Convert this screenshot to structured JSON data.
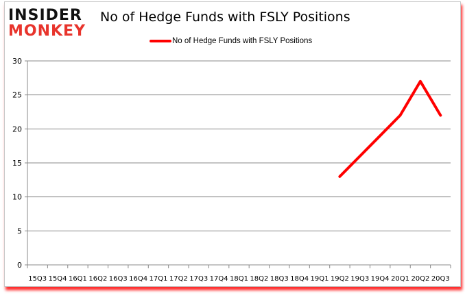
{
  "logo": {
    "line1": "INSIDER",
    "line2": "MONKEY"
  },
  "colors": {
    "series": "#ff0000",
    "grid": "#888888",
    "shadow": "#ff2a2a",
    "logo_red": "#e8342c"
  },
  "chart_data": {
    "type": "line",
    "title": "No of Hedge Funds with FSLY Positions",
    "xlabel": "",
    "ylabel": "",
    "ylim": [
      0,
      30
    ],
    "yticks": [
      0,
      5,
      10,
      15,
      20,
      25,
      30
    ],
    "grid": true,
    "legend_position": "top",
    "categories": [
      "15Q3",
      "15Q4",
      "16Q1",
      "16Q2",
      "16Q3",
      "16Q4",
      "17Q1",
      "17Q2",
      "17Q3",
      "17Q4",
      "18Q1",
      "18Q2",
      "18Q3",
      "18Q4",
      "19Q1",
      "19Q2",
      "19Q3",
      "19Q4",
      "20Q1",
      "20Q2",
      "20Q3"
    ],
    "series": [
      {
        "name": "No of Hedge Funds with FSLY Positions",
        "values": [
          null,
          null,
          null,
          null,
          null,
          null,
          null,
          null,
          null,
          null,
          null,
          null,
          null,
          null,
          null,
          13,
          16,
          19,
          22,
          27,
          22
        ]
      }
    ]
  }
}
